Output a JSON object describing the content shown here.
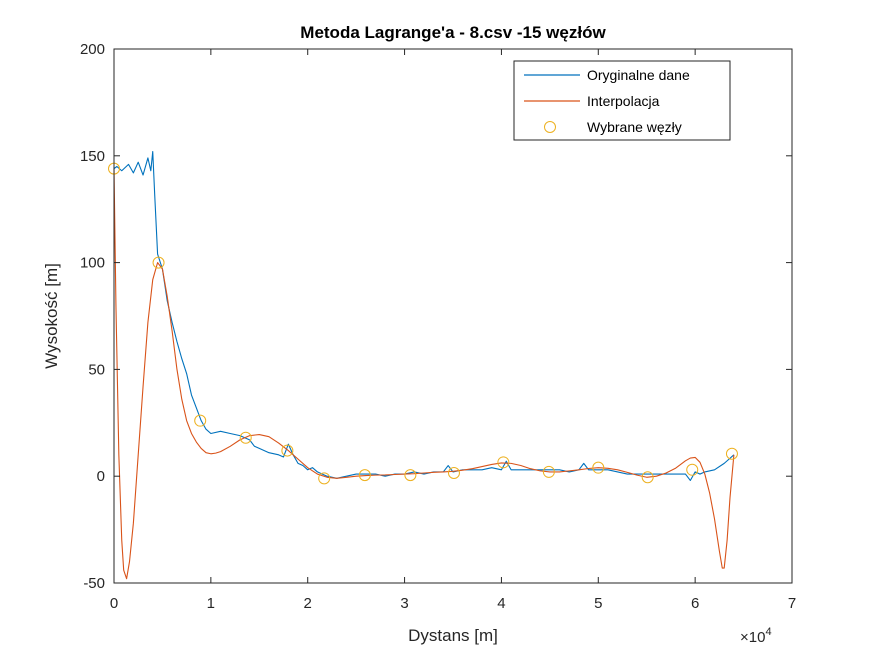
{
  "chart_data": {
    "type": "line",
    "title": "Metoda Lagrange'a - 8.csv -15 węzłów",
    "xlabel": "Dystans [m]",
    "ylabel": "Wysokość [m]",
    "x_exponent_label": "×10",
    "x_exponent_power": "4",
    "xlim": [
      0,
      70000
    ],
    "ylim": [
      -50,
      200
    ],
    "x_ticks": [
      0,
      10000,
      20000,
      30000,
      40000,
      50000,
      60000,
      70000
    ],
    "x_tick_labels": [
      "0",
      "1",
      "2",
      "3",
      "4",
      "5",
      "6",
      "7"
    ],
    "y_ticks": [
      -50,
      0,
      50,
      100,
      150,
      200
    ],
    "y_tick_labels": [
      "-50",
      "0",
      "50",
      "100",
      "150",
      "200"
    ],
    "grid": false,
    "legend_position": "top-right",
    "series": [
      {
        "name": "Oryginalne dane",
        "color": "#0072BD",
        "style": "line",
        "x": [
          0,
          300,
          800,
          1500,
          2000,
          2500,
          3000,
          3500,
          3800,
          4000,
          4200,
          4500,
          5000,
          5500,
          6000,
          6500,
          7000,
          7500,
          8000,
          8500,
          9000,
          9500,
          10000,
          11000,
          12000,
          13000,
          14000,
          14500,
          15000,
          16000,
          17000,
          17500,
          18000,
          18500,
          19000,
          19500,
          20000,
          20500,
          21000,
          22000,
          23000,
          24000,
          25000,
          26000,
          27000,
          28000,
          29000,
          30000,
          31000,
          32000,
          33000,
          34000,
          34500,
          35000,
          36000,
          37000,
          38000,
          39000,
          40000,
          40500,
          41000,
          42000,
          43000,
          44000,
          45000,
          46000,
          47000,
          48000,
          48500,
          49000,
          50000,
          51000,
          52000,
          53000,
          54000,
          55000,
          56000,
          57000,
          58000,
          59000,
          59500,
          60000,
          60500,
          61000,
          62000,
          63000,
          63500,
          64000
        ],
        "y": [
          144,
          145,
          143,
          146,
          142,
          147,
          141,
          149,
          143,
          152,
          132,
          104,
          97,
          82,
          72,
          63,
          55,
          48,
          38,
          32,
          26,
          22,
          20,
          21,
          20,
          19,
          17,
          14,
          13,
          11,
          10,
          9,
          15,
          10,
          6,
          5,
          3,
          4,
          2,
          0,
          -1,
          0,
          1,
          1,
          1,
          0,
          1,
          1,
          2,
          1,
          2,
          2,
          5,
          2,
          3,
          3,
          3,
          4,
          3,
          7,
          3,
          3,
          3,
          3,
          3,
          3,
          2,
          3,
          6,
          3,
          3,
          3,
          2,
          1,
          1,
          1,
          1,
          1,
          1,
          1,
          -2,
          2,
          1,
          2,
          3,
          6,
          8,
          10
        ]
      },
      {
        "name": "Interpolacja",
        "color": "#D95319",
        "style": "line",
        "x": [
          0,
          200,
          500,
          800,
          1000,
          1300,
          1600,
          2000,
          2500,
          3000,
          3500,
          4000,
          4500,
          5000,
          5500,
          6000,
          6500,
          7000,
          7500,
          8000,
          8500,
          9000,
          9500,
          10000,
          10500,
          11000,
          12000,
          13000,
          14000,
          15000,
          16000,
          17000,
          18000,
          19000,
          20000,
          21000,
          22000,
          23000,
          24000,
          25000,
          26000,
          27000,
          28000,
          29000,
          30000,
          31000,
          32000,
          33000,
          34000,
          35000,
          36000,
          37000,
          38000,
          39000,
          40000,
          41000,
          42000,
          43000,
          44000,
          45000,
          46000,
          47000,
          48000,
          49000,
          50000,
          51000,
          52000,
          53000,
          54000,
          55000,
          56000,
          57000,
          58000,
          58500,
          59000,
          59500,
          60000,
          60500,
          61000,
          61500,
          62000,
          62500,
          62800,
          63000,
          63300,
          63600,
          64000
        ],
        "y": [
          144,
          80,
          10,
          -30,
          -44,
          -48,
          -40,
          -22,
          10,
          42,
          72,
          92,
          100,
          97,
          84,
          68,
          50,
          36,
          26,
          20,
          16,
          13,
          11,
          10.5,
          10.8,
          11.5,
          14,
          17,
          19,
          19.5,
          18.5,
          15.5,
          12,
          8,
          4,
          1,
          -0.5,
          -1,
          -0.5,
          0,
          0.3,
          0.5,
          0.6,
          0.8,
          1,
          1.2,
          1.5,
          1.8,
          2,
          2.3,
          2.8,
          3.5,
          4.5,
          5.5,
          6.2,
          6,
          5,
          3.5,
          2.5,
          2,
          2,
          2.5,
          3,
          3.6,
          4,
          3.7,
          3,
          1.8,
          0.5,
          -0.5,
          0,
          1.5,
          3.8,
          5.5,
          7.2,
          8.5,
          8.8,
          6.5,
          1,
          -8,
          -20,
          -35,
          -43,
          -43,
          -30,
          -10,
          10
        ]
      },
      {
        "name": "Wybrane węzły",
        "color": "#EDB120",
        "style": "markers",
        "x": [
          0,
          4600,
          8900,
          13600,
          17900,
          21700,
          25900,
          30600,
          35100,
          40200,
          44900,
          50000,
          55100,
          59700,
          63800
        ],
        "y": [
          144,
          100,
          26,
          18,
          12,
          -1,
          0.5,
          0.5,
          1.5,
          6.5,
          2,
          4,
          -0.5,
          3,
          10.5
        ]
      }
    ]
  }
}
